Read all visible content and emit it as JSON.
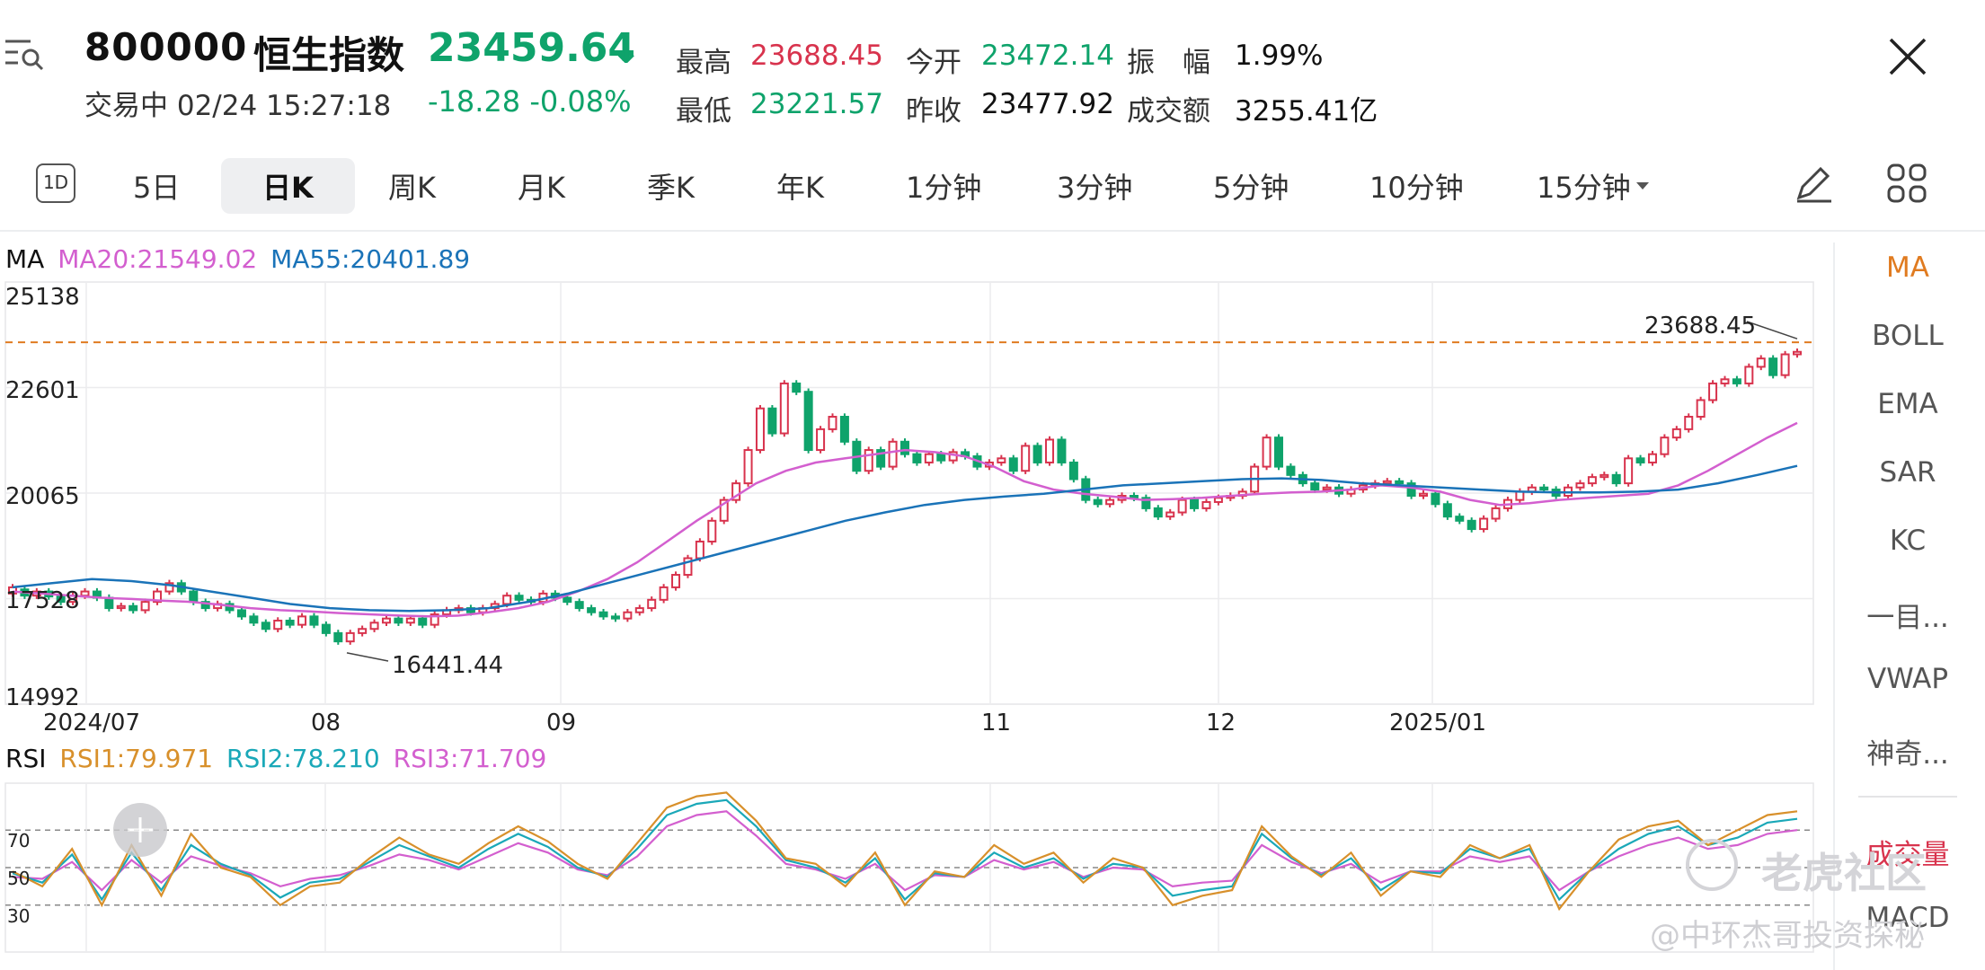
{
  "header": {
    "code": "800000",
    "name": "恒生指数",
    "price": "23459.64",
    "arrow": "↓",
    "status": "交易中 02/24 15:27:18",
    "change": "-18.28  -0.08%",
    "stats": [
      {
        "label": "最高",
        "value": "23688.45",
        "color": "#d8334d"
      },
      {
        "label": "今开",
        "value": "23472.14",
        "color": "#0fa36b"
      },
      {
        "label": "振　幅",
        "value": "1.99%",
        "color": "#111111"
      },
      {
        "label": "最低",
        "value": "23221.57",
        "color": "#0fa36b"
      },
      {
        "label": "昨收",
        "value": "23477.92",
        "color": "#111111"
      },
      {
        "label": "成交额",
        "value": "3255.41亿",
        "color": "#111111"
      }
    ]
  },
  "tabs": {
    "period_icon": "1D",
    "items": [
      "5日",
      "日K",
      "周K",
      "月K",
      "季K",
      "年K",
      "1分钟",
      "3分钟",
      "5分钟",
      "10分钟",
      "15分钟"
    ],
    "active": "日K"
  },
  "icons": {
    "menu": "menu-search-icon",
    "close": "close-icon",
    "draw": "pencil-icon",
    "grid": "grid-icon",
    "add": "plus-icon"
  },
  "ma_legend": {
    "label": "MA",
    "ma20": "MA20:21549.02",
    "ma55": "MA55:20401.89",
    "ma20_color": "#d35fcf",
    "ma55_color": "#1a73b8"
  },
  "rsi_legend": {
    "label": "RSI",
    "rsi1": "RSI1:79.971",
    "rsi2": "RSI2:78.210",
    "rsi3": "RSI3:71.709",
    "rsi1_color": "#d8902b",
    "rsi2_color": "#1aa8b8",
    "rsi3_color": "#d35fcf"
  },
  "side_menu": {
    "items": [
      "MA",
      "BOLL",
      "EMA",
      "SAR",
      "KC",
      "一目...",
      "VWAP",
      "神奇...",
      "成交量",
      "MACD"
    ],
    "active": "MA",
    "active_color": "#e07b20"
  },
  "watermarks": {
    "brand": "老虎社区",
    "author": "@中环杰哥投资探秘"
  },
  "chart_data": {
    "type": "candlestick",
    "y_ticks": [
      "25138",
      "22601",
      "20065",
      "17528",
      "14992"
    ],
    "x_ticks": [
      "2024/07",
      "08",
      "09",
      "11",
      "12",
      "2025/01"
    ],
    "ylim": [
      14992,
      25138
    ],
    "high_label": "23688.45",
    "low_label": "16441.44",
    "high_value": 23688.45,
    "low_value": 16441.44,
    "candles": [
      [
        17650,
        17800
      ],
      [
        17750,
        17600
      ],
      [
        17600,
        17700
      ],
      [
        17700,
        17580
      ],
      [
        17580,
        17450
      ],
      [
        17450,
        17600
      ],
      [
        17600,
        17700
      ],
      [
        17700,
        17550
      ],
      [
        17550,
        17300
      ],
      [
        17300,
        17350
      ],
      [
        17350,
        17250
      ],
      [
        17250,
        17450
      ],
      [
        17450,
        17700
      ],
      [
        17700,
        17900
      ],
      [
        17900,
        17700
      ],
      [
        17700,
        17450
      ],
      [
        17450,
        17300
      ],
      [
        17300,
        17400
      ],
      [
        17400,
        17250
      ],
      [
        17250,
        17100
      ],
      [
        17100,
        16950
      ],
      [
        16950,
        16800
      ],
      [
        16800,
        17000
      ],
      [
        17000,
        16900
      ],
      [
        16900,
        17100
      ],
      [
        17100,
        16900
      ],
      [
        16900,
        16700
      ],
      [
        16700,
        16500
      ],
      [
        16500,
        16700
      ],
      [
        16700,
        16800
      ],
      [
        16800,
        16950
      ],
      [
        16950,
        17050
      ],
      [
        17050,
        16950
      ],
      [
        16950,
        17050
      ],
      [
        17050,
        16900
      ],
      [
        16900,
        17150
      ],
      [
        17150,
        17250
      ],
      [
        17250,
        17300
      ],
      [
        17300,
        17200
      ],
      [
        17200,
        17300
      ],
      [
        17300,
        17400
      ],
      [
        17400,
        17600
      ],
      [
        17600,
        17500
      ],
      [
        17500,
        17450
      ],
      [
        17450,
        17650
      ],
      [
        17650,
        17550
      ],
      [
        17550,
        17450
      ],
      [
        17450,
        17300
      ],
      [
        17300,
        17200
      ],
      [
        17200,
        17100
      ],
      [
        17100,
        17050
      ],
      [
        17050,
        17200
      ],
      [
        17200,
        17300
      ],
      [
        17300,
        17500
      ],
      [
        17500,
        17800
      ],
      [
        17800,
        18100
      ],
      [
        18100,
        18500
      ],
      [
        18500,
        18900
      ],
      [
        18900,
        19400
      ],
      [
        19400,
        19900
      ],
      [
        19900,
        20300
      ],
      [
        20300,
        21100
      ],
      [
        21100,
        22100
      ],
      [
        22100,
        21500
      ],
      [
        21500,
        22700
      ],
      [
        22700,
        22500
      ],
      [
        22500,
        21100
      ],
      [
        21100,
        21600
      ],
      [
        21600,
        21900
      ],
      [
        21900,
        21300
      ],
      [
        21300,
        20600
      ],
      [
        20600,
        21100
      ],
      [
        21100,
        20700
      ],
      [
        20700,
        21300
      ],
      [
        21300,
        21000
      ],
      [
        21000,
        20800
      ],
      [
        20800,
        21000
      ],
      [
        21000,
        20850
      ],
      [
        20850,
        21050
      ],
      [
        21050,
        20950
      ],
      [
        20950,
        20700
      ],
      [
        20700,
        20800
      ],
      [
        20800,
        20900
      ],
      [
        20900,
        20600
      ],
      [
        20600,
        21200
      ],
      [
        21200,
        20800
      ],
      [
        20800,
        21350
      ],
      [
        21350,
        20800
      ],
      [
        20800,
        20400
      ],
      [
        20400,
        19900
      ],
      [
        19900,
        19800
      ],
      [
        19800,
        19900
      ],
      [
        19900,
        20000
      ],
      [
        20000,
        19950
      ],
      [
        19950,
        19700
      ],
      [
        19700,
        19500
      ],
      [
        19500,
        19600
      ],
      [
        19600,
        19900
      ],
      [
        19900,
        19700
      ],
      [
        19700,
        19850
      ],
      [
        19850,
        19950
      ],
      [
        19950,
        20000
      ],
      [
        20000,
        20100
      ],
      [
        20100,
        20700
      ],
      [
        20700,
        21400
      ],
      [
        21400,
        20700
      ],
      [
        20700,
        20500
      ],
      [
        20500,
        20300
      ],
      [
        20300,
        20150
      ],
      [
        20150,
        20200
      ],
      [
        20200,
        20050
      ],
      [
        20050,
        20150
      ],
      [
        20150,
        20250
      ],
      [
        20250,
        20300
      ],
      [
        20300,
        20350
      ],
      [
        20350,
        20300
      ],
      [
        20300,
        20000
      ],
      [
        20000,
        20050
      ],
      [
        20050,
        19800
      ],
      [
        19800,
        19500
      ],
      [
        19500,
        19400
      ],
      [
        19400,
        19200
      ],
      [
        19200,
        19450
      ],
      [
        19450,
        19700
      ],
      [
        19700,
        19900
      ],
      [
        19900,
        20100
      ],
      [
        20100,
        20200
      ],
      [
        20200,
        20150
      ],
      [
        20150,
        20000
      ],
      [
        20000,
        20200
      ],
      [
        20200,
        20300
      ],
      [
        20300,
        20450
      ],
      [
        20450,
        20500
      ],
      [
        20500,
        20300
      ],
      [
        20300,
        20900
      ],
      [
        20900,
        20800
      ],
      [
        20800,
        21000
      ],
      [
        21000,
        21400
      ],
      [
        21400,
        21600
      ],
      [
        21600,
        21900
      ],
      [
        21900,
        22300
      ],
      [
        22300,
        22700
      ],
      [
        22700,
        22800
      ],
      [
        22800,
        22700
      ],
      [
        22700,
        23100
      ],
      [
        23100,
        23300
      ],
      [
        23300,
        22900
      ],
      [
        22900,
        23400
      ],
      [
        23400,
        23460
      ]
    ],
    "ma20": [
      17700,
      17650,
      17600,
      17550,
      17520,
      17480,
      17450,
      17380,
      17300,
      17250,
      17220,
      17180,
      17150,
      17120,
      17100,
      17120,
      17200,
      17300,
      17450,
      17700,
      18000,
      18400,
      18900,
      19400,
      19850,
      20300,
      20600,
      20800,
      20900,
      21000,
      21100,
      21050,
      20950,
      20700,
      20350,
      20150,
      20050,
      19980,
      19900,
      19920,
      19950,
      20000,
      20050,
      20080,
      20100,
      20150,
      20250,
      20200,
      20100,
      19900,
      19780,
      19820,
      19900,
      19950,
      20000,
      20050,
      20250,
      20600,
      21000,
      21400,
      21750
    ],
    "ma55": [
      17800,
      17900,
      18000,
      17950,
      17850,
      17700,
      17550,
      17400,
      17300,
      17250,
      17230,
      17250,
      17300,
      17450,
      17650,
      17900,
      18150,
      18400,
      18650,
      18900,
      19150,
      19400,
      19600,
      19780,
      19900,
      19980,
      20050,
      20150,
      20250,
      20300,
      20350,
      20400,
      20420,
      20380,
      20300,
      20250,
      20200,
      20150,
      20100,
      20080,
      20080,
      20100,
      20150,
      20300,
      20500,
      20720
    ],
    "rsi_ticks": [
      "70",
      "50",
      "30"
    ],
    "rsi1": [
      48,
      40,
      60,
      30,
      62,
      35,
      68,
      50,
      45,
      30,
      40,
      42,
      55,
      66,
      57,
      52,
      63,
      72,
      64,
      52,
      44,
      63,
      82,
      88,
      90,
      75,
      55,
      52,
      40,
      58,
      30,
      48,
      45,
      62,
      52,
      58,
      42,
      55,
      50,
      30,
      35,
      38,
      72,
      56,
      45,
      58,
      35,
      48,
      45,
      62,
      55,
      62,
      28,
      48,
      65,
      72,
      75,
      62,
      70,
      78,
      80
    ],
    "rsi2": [
      47,
      42,
      57,
      33,
      58,
      38,
      62,
      52,
      46,
      34,
      42,
      44,
      53,
      62,
      56,
      50,
      60,
      68,
      61,
      50,
      45,
      60,
      78,
      84,
      86,
      72,
      54,
      50,
      42,
      55,
      33,
      47,
      45,
      58,
      50,
      55,
      44,
      52,
      50,
      35,
      38,
      40,
      68,
      55,
      46,
      55,
      38,
      48,
      47,
      60,
      55,
      60,
      33,
      48,
      60,
      68,
      72,
      62,
      66,
      74,
      76
    ],
    "rsi3": [
      45,
      44,
      53,
      38,
      54,
      42,
      56,
      51,
      47,
      40,
      44,
      46,
      51,
      57,
      54,
      49,
      56,
      63,
      58,
      49,
      46,
      56,
      72,
      78,
      80,
      67,
      52,
      49,
      44,
      52,
      38,
      46,
      45,
      54,
      49,
      53,
      45,
      50,
      49,
      40,
      42,
      43,
      62,
      53,
      47,
      52,
      42,
      48,
      48,
      56,
      53,
      56,
      38,
      48,
      56,
      62,
      66,
      60,
      62,
      68,
      70
    ]
  }
}
